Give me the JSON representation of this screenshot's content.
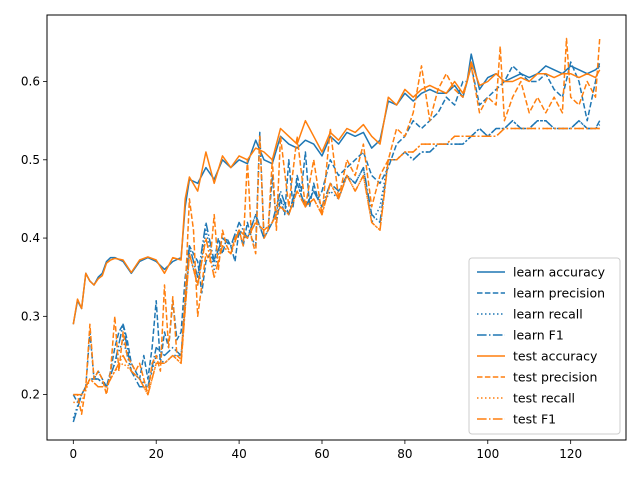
{
  "chart_data": {
    "type": "line",
    "title": "",
    "xlabel": "",
    "ylabel": "",
    "xlim": [
      -6.35,
      133.35
    ],
    "ylim": [
      0.142,
      0.685
    ],
    "xticks": [
      0,
      20,
      40,
      60,
      80,
      100,
      120
    ],
    "yticks": [
      0.2,
      0.3,
      0.4,
      0.5,
      0.6
    ],
    "ytick_labels": [
      "0.2",
      "0.3",
      "0.4",
      "0.5",
      "0.6"
    ],
    "grid": false,
    "legend_position": "lower-right",
    "colors": {
      "learn": "#1f77b4",
      "test": "#ff7f0e"
    },
    "series": [
      {
        "name": "learn accuracy",
        "color": "#1f77b4",
        "dash": "solid",
        "x": [
          0,
          1,
          2,
          3,
          4,
          5,
          6,
          7,
          8,
          9,
          10,
          12,
          14,
          16,
          18,
          20,
          22,
          24,
          26,
          27,
          28,
          30,
          32,
          34,
          36,
          38,
          40,
          42,
          44,
          46,
          48,
          50,
          52,
          54,
          56,
          58,
          60,
          62,
          64,
          66,
          68,
          70,
          72,
          74,
          76,
          78,
          80,
          82,
          84,
          86,
          88,
          90,
          92,
          94,
          95,
          96,
          98,
          100,
          102,
          104,
          106,
          108,
          110,
          112,
          114,
          116,
          118,
          120,
          122,
          124,
          126,
          127
        ],
        "y": [
          0.29,
          0.32,
          0.31,
          0.355,
          0.345,
          0.34,
          0.35,
          0.355,
          0.37,
          0.375,
          0.375,
          0.37,
          0.355,
          0.37,
          0.375,
          0.37,
          0.36,
          0.37,
          0.375,
          0.44,
          0.475,
          0.47,
          0.49,
          0.475,
          0.5,
          0.49,
          0.5,
          0.495,
          0.525,
          0.5,
          0.495,
          0.53,
          0.52,
          0.515,
          0.525,
          0.52,
          0.505,
          0.53,
          0.52,
          0.535,
          0.53,
          0.535,
          0.515,
          0.525,
          0.575,
          0.57,
          0.585,
          0.575,
          0.585,
          0.59,
          0.585,
          0.585,
          0.595,
          0.58,
          0.6,
          0.635,
          0.59,
          0.605,
          0.61,
          0.6,
          0.605,
          0.61,
          0.605,
          0.61,
          0.62,
          0.615,
          0.61,
          0.62,
          0.615,
          0.61,
          0.615,
          0.62
        ]
      },
      {
        "name": "learn precision",
        "color": "#1f77b4",
        "dash": "dashed",
        "x": [
          0,
          1,
          2,
          3,
          4,
          5,
          6,
          7,
          8,
          9,
          10,
          11,
          12,
          13,
          14,
          15,
          16,
          17,
          18,
          19,
          20,
          21,
          22,
          23,
          24,
          25,
          26,
          27,
          28,
          29,
          30,
          31,
          32,
          33,
          34,
          35,
          36,
          37,
          38,
          39,
          40,
          41,
          42,
          43,
          44,
          45,
          46,
          47,
          48,
          49,
          50,
          51,
          52,
          53,
          54,
          55,
          56,
          57,
          58,
          59,
          60,
          62,
          64,
          66,
          68,
          70,
          72,
          74,
          76,
          78,
          80,
          82,
          84,
          86,
          88,
          90,
          92,
          94,
          95,
          96,
          98,
          100,
          102,
          104,
          106,
          108,
          110,
          112,
          114,
          116,
          118,
          120,
          122,
          124,
          126,
          127
        ],
        "y": [
          0.2,
          0.19,
          0.2,
          0.21,
          0.28,
          0.22,
          0.23,
          0.22,
          0.21,
          0.23,
          0.26,
          0.28,
          0.29,
          0.27,
          0.24,
          0.23,
          0.22,
          0.25,
          0.22,
          0.26,
          0.32,
          0.24,
          0.28,
          0.26,
          0.32,
          0.27,
          0.28,
          0.35,
          0.39,
          0.38,
          0.37,
          0.33,
          0.37,
          0.38,
          0.37,
          0.4,
          0.38,
          0.4,
          0.39,
          0.37,
          0.41,
          0.39,
          0.42,
          0.4,
          0.39,
          0.535,
          0.4,
          0.41,
          0.48,
          0.42,
          0.45,
          0.43,
          0.5,
          0.44,
          0.48,
          0.46,
          0.51,
          0.44,
          0.47,
          0.45,
          0.46,
          0.5,
          0.48,
          0.49,
          0.5,
          0.51,
          0.48,
          0.47,
          0.49,
          0.52,
          0.53,
          0.55,
          0.54,
          0.55,
          0.56,
          0.58,
          0.57,
          0.6,
          0.6,
          0.62,
          0.57,
          0.58,
          0.59,
          0.6,
          0.62,
          0.61,
          0.6,
          0.6,
          0.61,
          0.59,
          0.58,
          0.625,
          0.6,
          0.55,
          0.6,
          0.625
        ]
      },
      {
        "name": "learn recall",
        "color": "#1f77b4",
        "dash": "dotted",
        "x": [
          0,
          2,
          4,
          6,
          8,
          10,
          12,
          14,
          16,
          18,
          20,
          22,
          24,
          26,
          28,
          30,
          32,
          34,
          36,
          38,
          40,
          42,
          44,
          46,
          48,
          50,
          52,
          54,
          56,
          58,
          60,
          62,
          64,
          66,
          68,
          70,
          72,
          74,
          76,
          78,
          80,
          82,
          84,
          86,
          88,
          90,
          92,
          94,
          96,
          98,
          100,
          102,
          104,
          106,
          108,
          110,
          112,
          114,
          116,
          118,
          120,
          122,
          124,
          126,
          127
        ],
        "y": [
          0.17,
          0.2,
          0.22,
          0.22,
          0.21,
          0.24,
          0.27,
          0.23,
          0.22,
          0.21,
          0.25,
          0.24,
          0.25,
          0.25,
          0.38,
          0.34,
          0.41,
          0.36,
          0.4,
          0.39,
          0.41,
          0.4,
          0.43,
          0.4,
          0.42,
          0.45,
          0.43,
          0.47,
          0.44,
          0.46,
          0.44,
          0.46,
          0.45,
          0.48,
          0.47,
          0.49,
          0.42,
          0.44,
          0.5,
          0.5,
          0.51,
          0.5,
          0.51,
          0.51,
          0.52,
          0.52,
          0.52,
          0.52,
          0.53,
          0.54,
          0.53,
          0.54,
          0.54,
          0.55,
          0.54,
          0.54,
          0.55,
          0.55,
          0.54,
          0.54,
          0.54,
          0.55,
          0.54,
          0.54,
          0.545
        ]
      },
      {
        "name": "learn F1",
        "color": "#1f77b4",
        "dash": "dashdot",
        "x": [
          0,
          2,
          4,
          6,
          8,
          10,
          12,
          14,
          16,
          18,
          20,
          22,
          24,
          26,
          28,
          30,
          32,
          34,
          36,
          38,
          40,
          42,
          44,
          46,
          48,
          50,
          52,
          54,
          56,
          58,
          60,
          62,
          64,
          66,
          68,
          70,
          72,
          74,
          76,
          78,
          80,
          82,
          84,
          86,
          88,
          90,
          92,
          94,
          96,
          98,
          100,
          102,
          104,
          106,
          108,
          110,
          112,
          114,
          116,
          118,
          120,
          122,
          124,
          126,
          127
        ],
        "y": [
          0.165,
          0.2,
          0.22,
          0.22,
          0.21,
          0.24,
          0.29,
          0.23,
          0.21,
          0.21,
          0.26,
          0.25,
          0.26,
          0.25,
          0.39,
          0.35,
          0.42,
          0.37,
          0.4,
          0.39,
          0.42,
          0.4,
          0.43,
          0.4,
          0.42,
          0.46,
          0.43,
          0.47,
          0.44,
          0.46,
          0.44,
          0.47,
          0.46,
          0.48,
          0.47,
          0.49,
          0.43,
          0.42,
          0.5,
          0.5,
          0.51,
          0.5,
          0.51,
          0.51,
          0.52,
          0.52,
          0.52,
          0.52,
          0.53,
          0.54,
          0.53,
          0.54,
          0.54,
          0.55,
          0.54,
          0.54,
          0.55,
          0.55,
          0.54,
          0.54,
          0.54,
          0.55,
          0.54,
          0.54,
          0.55
        ]
      },
      {
        "name": "test accuracy",
        "color": "#ff7f0e",
        "dash": "solid",
        "x": [
          0,
          1,
          2,
          3,
          4,
          5,
          6,
          7,
          8,
          9,
          10,
          12,
          14,
          16,
          18,
          20,
          22,
          24,
          26,
          27,
          28,
          30,
          32,
          34,
          36,
          38,
          40,
          42,
          44,
          46,
          48,
          50,
          52,
          54,
          56,
          58,
          60,
          62,
          64,
          66,
          68,
          70,
          72,
          74,
          76,
          78,
          80,
          82,
          84,
          86,
          88,
          90,
          92,
          94,
          95,
          96,
          98,
          100,
          102,
          104,
          106,
          108,
          110,
          112,
          114,
          116,
          118,
          120,
          122,
          124,
          126,
          127
        ],
        "y": [
          0.29,
          0.322,
          0.31,
          0.355,
          0.345,
          0.34,
          0.348,
          0.352,
          0.368,
          0.372,
          0.374,
          0.372,
          0.356,
          0.372,
          0.376,
          0.372,
          0.355,
          0.375,
          0.372,
          0.45,
          0.478,
          0.46,
          0.51,
          0.47,
          0.505,
          0.49,
          0.505,
          0.5,
          0.515,
          0.51,
          0.5,
          0.54,
          0.53,
          0.52,
          0.55,
          0.53,
          0.51,
          0.535,
          0.525,
          0.54,
          0.535,
          0.545,
          0.53,
          0.52,
          0.58,
          0.57,
          0.59,
          0.58,
          0.59,
          0.595,
          0.59,
          0.585,
          0.6,
          0.585,
          0.6,
          0.625,
          0.595,
          0.6,
          0.61,
          0.6,
          0.6,
          0.605,
          0.6,
          0.61,
          0.61,
          0.605,
          0.61,
          0.61,
          0.605,
          0.61,
          0.605,
          0.615
        ]
      },
      {
        "name": "test precision",
        "color": "#ff7f0e",
        "dash": "dashed",
        "x": [
          0,
          1,
          2,
          3,
          4,
          5,
          6,
          7,
          8,
          9,
          10,
          11,
          12,
          13,
          14,
          15,
          16,
          17,
          18,
          19,
          20,
          21,
          22,
          23,
          24,
          25,
          26,
          27,
          28,
          29,
          30,
          31,
          32,
          33,
          34,
          35,
          36,
          37,
          38,
          39,
          40,
          41,
          42,
          43,
          44,
          45,
          46,
          47,
          48,
          49,
          50,
          52,
          54,
          56,
          58,
          60,
          62,
          64,
          66,
          68,
          70,
          72,
          74,
          76,
          78,
          80,
          82,
          84,
          86,
          88,
          90,
          92,
          94,
          95,
          96,
          98,
          100,
          102,
          103,
          104,
          106,
          108,
          110,
          112,
          114,
          116,
          118,
          119,
          120,
          122,
          124,
          126,
          127
        ],
        "y": [
          0.2,
          0.2,
          0.175,
          0.21,
          0.29,
          0.22,
          0.23,
          0.22,
          0.2,
          0.23,
          0.3,
          0.23,
          0.28,
          0.25,
          0.24,
          0.23,
          0.24,
          0.22,
          0.2,
          0.24,
          0.25,
          0.23,
          0.34,
          0.26,
          0.325,
          0.25,
          0.245,
          0.33,
          0.45,
          0.41,
          0.3,
          0.34,
          0.38,
          0.37,
          0.43,
          0.36,
          0.41,
          0.39,
          0.38,
          0.4,
          0.41,
          0.39,
          0.5,
          0.4,
          0.38,
          0.53,
          0.4,
          0.41,
          0.5,
          0.41,
          0.53,
          0.44,
          0.53,
          0.44,
          0.5,
          0.43,
          0.54,
          0.45,
          0.5,
          0.48,
          0.52,
          0.44,
          0.48,
          0.5,
          0.54,
          0.53,
          0.56,
          0.62,
          0.55,
          0.59,
          0.61,
          0.59,
          0.58,
          0.6,
          0.62,
          0.56,
          0.58,
          0.57,
          0.645,
          0.55,
          0.58,
          0.6,
          0.56,
          0.58,
          0.56,
          0.58,
          0.56,
          0.655,
          0.58,
          0.57,
          0.6,
          0.58,
          0.655
        ]
      },
      {
        "name": "test recall",
        "color": "#ff7f0e",
        "dash": "dotted",
        "x": [
          0,
          2,
          4,
          6,
          8,
          10,
          12,
          14,
          16,
          18,
          20,
          22,
          24,
          26,
          28,
          30,
          32,
          34,
          36,
          38,
          40,
          42,
          44,
          46,
          48,
          50,
          52,
          54,
          56,
          58,
          60,
          62,
          64,
          66,
          68,
          70,
          72,
          74,
          76,
          78,
          80,
          82,
          84,
          86,
          88,
          90,
          92,
          94,
          96,
          98,
          100,
          102,
          104,
          106,
          108,
          110,
          112,
          114,
          116,
          118,
          120,
          122,
          124,
          126,
          127
        ],
        "y": [
          0.19,
          0.19,
          0.22,
          0.21,
          0.21,
          0.23,
          0.24,
          0.23,
          0.22,
          0.2,
          0.24,
          0.24,
          0.25,
          0.24,
          0.38,
          0.34,
          0.4,
          0.35,
          0.39,
          0.38,
          0.41,
          0.4,
          0.42,
          0.41,
          0.42,
          0.44,
          0.43,
          0.46,
          0.44,
          0.45,
          0.43,
          0.47,
          0.45,
          0.48,
          0.46,
          0.48,
          0.42,
          0.41,
          0.5,
          0.5,
          0.51,
          0.51,
          0.52,
          0.52,
          0.52,
          0.52,
          0.53,
          0.53,
          0.53,
          0.53,
          0.53,
          0.53,
          0.54,
          0.54,
          0.54,
          0.54,
          0.54,
          0.54,
          0.54,
          0.54,
          0.54,
          0.54,
          0.54,
          0.54,
          0.54
        ]
      },
      {
        "name": "test F1",
        "color": "#ff7f0e",
        "dash": "dashdot",
        "x": [
          0,
          2,
          4,
          6,
          8,
          10,
          12,
          14,
          16,
          18,
          20,
          22,
          24,
          26,
          28,
          30,
          32,
          34,
          36,
          38,
          40,
          42,
          44,
          46,
          48,
          50,
          52,
          54,
          56,
          58,
          60,
          62,
          64,
          66,
          68,
          70,
          72,
          74,
          76,
          78,
          80,
          82,
          84,
          86,
          88,
          90,
          92,
          94,
          96,
          98,
          100,
          102,
          104,
          106,
          108,
          110,
          112,
          114,
          116,
          118,
          120,
          122,
          124,
          126,
          127
        ],
        "y": [
          0.2,
          0.2,
          0.22,
          0.21,
          0.21,
          0.23,
          0.25,
          0.23,
          0.22,
          0.2,
          0.24,
          0.24,
          0.25,
          0.24,
          0.38,
          0.34,
          0.4,
          0.35,
          0.39,
          0.38,
          0.41,
          0.4,
          0.42,
          0.41,
          0.42,
          0.44,
          0.43,
          0.46,
          0.44,
          0.45,
          0.43,
          0.47,
          0.45,
          0.48,
          0.46,
          0.48,
          0.42,
          0.41,
          0.5,
          0.5,
          0.51,
          0.51,
          0.52,
          0.52,
          0.52,
          0.52,
          0.53,
          0.53,
          0.53,
          0.53,
          0.53,
          0.53,
          0.54,
          0.54,
          0.54,
          0.54,
          0.54,
          0.54,
          0.54,
          0.54,
          0.54,
          0.54,
          0.54,
          0.54,
          0.54
        ]
      }
    ]
  }
}
